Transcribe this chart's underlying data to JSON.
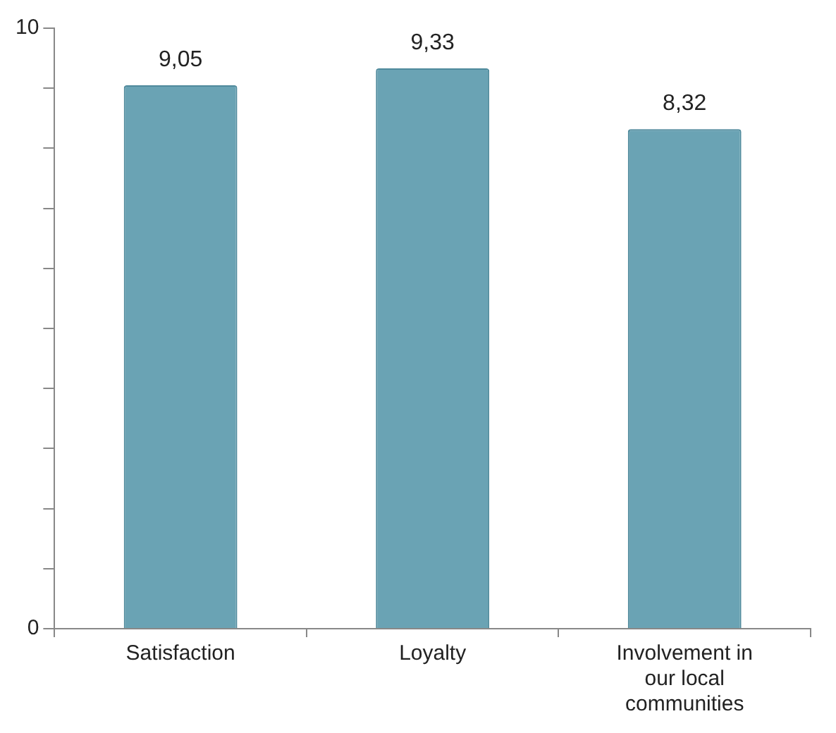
{
  "chart_data": {
    "type": "bar",
    "categories": [
      "Satisfaction",
      "Loyalty",
      "Involvement in our local communities"
    ],
    "values": [
      9.05,
      9.33,
      8.32
    ],
    "value_labels": [
      "9,05",
      "9,33",
      "8,32"
    ],
    "color": "#6aa3b4",
    "ylim": [
      0,
      10
    ],
    "yticks": [
      0,
      {
        "value": 1,
        "label": null
      },
      {
        "value": 2,
        "label": null
      },
      {
        "value": 3,
        "label": null
      },
      {
        "value": 4,
        "label": null
      },
      {
        "value": 5,
        "label": null
      },
      {
        "value": 6,
        "label": null
      },
      {
        "value": 7,
        "label": null
      },
      {
        "value": 8,
        "label": null
      },
      {
        "value": 9,
        "label": null
      },
      10
    ],
    "grid": false,
    "legend": false
  }
}
